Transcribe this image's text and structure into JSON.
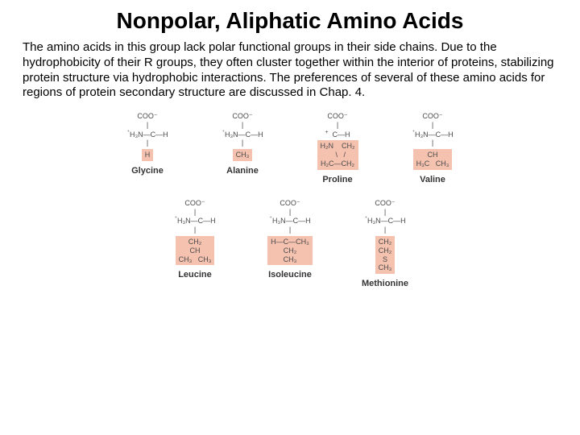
{
  "title": "Nonpolar, Aliphatic Amino Acids",
  "body": "The amino acids in this group lack polar functional groups in their side chains. Due to the hydrophobicity of their R groups, they often cluster together within the interior of proteins, stabilizing protein structure via hydrophobic interactions. The preferences of several of these amino acids for regions of protein secondary structure are discussed in Chap. 4.",
  "highlight_color": "#f5c2b0",
  "background_color": "#ffffff",
  "text_color": "#000000",
  "struct_color": "#4a4a4a",
  "amino_acids_row1": [
    {
      "name": "Glycine",
      "r_group": "H"
    },
    {
      "name": "Alanine",
      "r_group": "CH₃"
    },
    {
      "name": "Proline",
      "r_group": "ring"
    },
    {
      "name": "Valine",
      "r_group": "CH\nH₃C   CH₃"
    }
  ],
  "amino_acids_row2": [
    {
      "name": "Leucine",
      "r_group": "CH₂\nCH\nCH₃   CH₃"
    },
    {
      "name": "Isoleucine",
      "r_group": "H—C—CH₃\nCH₂\nCH₃"
    },
    {
      "name": "Methionine",
      "r_group": "CH₂\nCH₂\nS\nCH₃"
    }
  ],
  "backbone": {
    "coo": "COO⁻",
    "chain": "H₃N—C—H",
    "chain_plus": "⁺"
  }
}
